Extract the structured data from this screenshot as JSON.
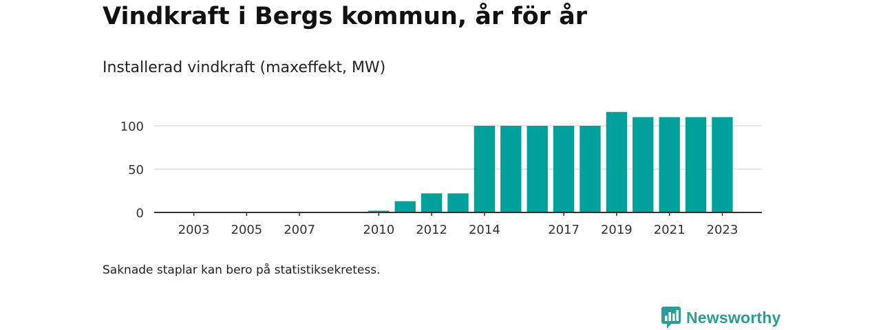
{
  "title": "Vindkraft i Bergs kommun, år för år",
  "subtitle": "Installerad vindkraft (maxeffekt, MW)",
  "footnote": "Saknade staplar kan bero på statistiksekretess.",
  "brand": {
    "name": "Newsworthy",
    "icon": "newsworthy-logo-icon",
    "color": "#2a9d9a"
  },
  "chart_data": {
    "type": "bar",
    "title": "Installerad vindkraft (maxeffekt, MW)",
    "xlabel": "",
    "ylabel": "",
    "color": "#00a19a",
    "x_range": [
      2001.5,
      2024.5
    ],
    "ylim": [
      0,
      120
    ],
    "yticks": [
      0,
      50,
      100
    ],
    "xticks": [
      2003,
      2005,
      2007,
      2010,
      2012,
      2014,
      2017,
      2019,
      2021,
      2023
    ],
    "grid": true,
    "legend": "none",
    "categories": [
      2010,
      2011,
      2012,
      2013,
      2014,
      2015,
      2016,
      2017,
      2018,
      2019,
      2020,
      2021,
      2022,
      2023
    ],
    "values": [
      2,
      13,
      22,
      22,
      100,
      100,
      100,
      100,
      100,
      116,
      110,
      110,
      110,
      110
    ]
  }
}
